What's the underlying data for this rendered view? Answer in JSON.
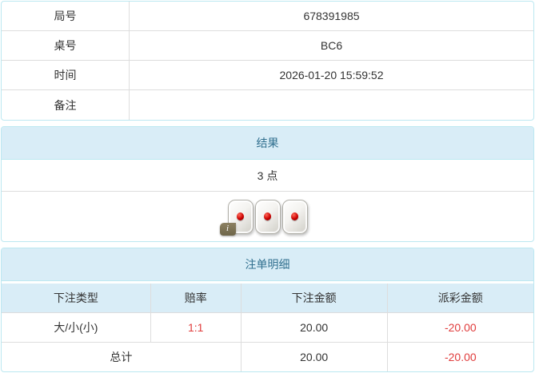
{
  "info_table": {
    "rows": [
      {
        "label": "局号",
        "value": "678391985"
      },
      {
        "label": "桌号",
        "value": "BC6"
      },
      {
        "label": "时间",
        "value": "2026-01-20 15:59:52"
      },
      {
        "label": "备注",
        "value": ""
      }
    ]
  },
  "result_panel": {
    "title": "结果",
    "points": "3 点",
    "dice": [
      1,
      1,
      1
    ],
    "info_badge": "i"
  },
  "bets_panel": {
    "title": "注单明细",
    "columns": [
      "下注类型",
      "赔率",
      "下注金额",
      "派彩金额"
    ],
    "rows": [
      {
        "type": "大/小(小)",
        "odds": "1:1",
        "amount": "20.00",
        "payout": "-20.00"
      }
    ],
    "total": {
      "label": "总计",
      "amount": "20.00",
      "payout": "-20.00"
    }
  },
  "colors": {
    "panel_border": "#bce8f1",
    "heading_bg": "#d9edf7",
    "heading_text": "#31708f",
    "divider": "#dddddd",
    "text": "#333333",
    "negative": "#e03c3c",
    "badge_bg": "#7d7253",
    "die_pip": "#cc0000"
  }
}
